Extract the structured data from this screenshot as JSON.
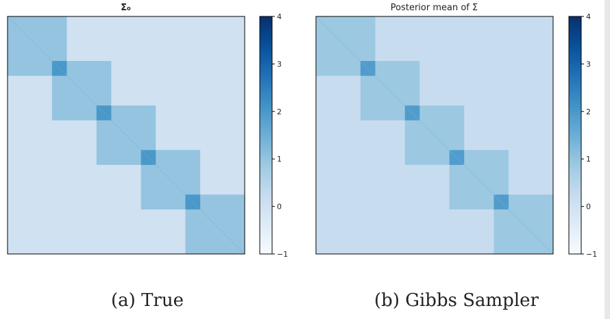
{
  "chart_data": [
    {
      "type": "heatmap",
      "title": "Σ₀",
      "matrix_description": "block-diagonal covariance, 5 overlapping blocks",
      "background_value": 0,
      "block_value": 1,
      "diagonal_value": 1,
      "overlap_value": 2,
      "blocks": [
        {
          "start": 0,
          "end": 0.25
        },
        {
          "start": 0.1875,
          "end": 0.4375
        },
        {
          "start": 0.375,
          "end": 0.625
        },
        {
          "start": 0.5625,
          "end": 0.8125
        },
        {
          "start": 0.75,
          "end": 1.0
        }
      ],
      "colorbar": {
        "min": -1,
        "max": 4,
        "ticks": [
          -1,
          0,
          1,
          2,
          3,
          4
        ]
      },
      "colormap": "Blues",
      "caption": "(a) True"
    },
    {
      "type": "heatmap",
      "title": "Posterior mean of Σ",
      "matrix_description": "estimated covariance, block structure with slight noise",
      "background_value": 0.2,
      "block_value": 0.9,
      "diagonal_value": 1,
      "overlap_value": 1.9,
      "blocks": [
        {
          "start": 0,
          "end": 0.25
        },
        {
          "start": 0.1875,
          "end": 0.4375
        },
        {
          "start": 0.375,
          "end": 0.625
        },
        {
          "start": 0.5625,
          "end": 0.8125
        },
        {
          "start": 0.75,
          "end": 1.0
        }
      ],
      "colorbar": {
        "min": -1,
        "max": 4,
        "ticks": [
          -1,
          0,
          1,
          2,
          3,
          4
        ]
      },
      "colormap": "Blues",
      "caption": "(b) Gibbs Sampler"
    }
  ],
  "colors": {
    "blues_scale": [
      "#f7fbff",
      "#deebf7",
      "#c6dbef",
      "#9ecae1",
      "#6baed6",
      "#4292c6",
      "#2171b5",
      "#08519c",
      "#08306b"
    ]
  }
}
